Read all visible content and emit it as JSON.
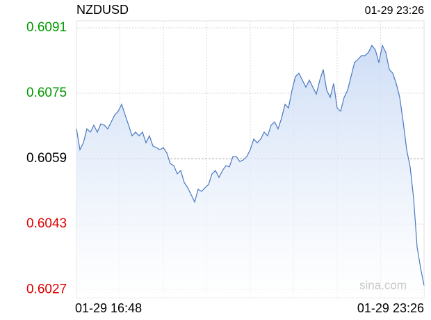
{
  "chart_data": {
    "type": "line",
    "title": "NZDUSD",
    "timestamp": "01-29 23:26",
    "watermark": "sina.com",
    "xlabels": [
      "01-29 16:48",
      "01-29 23:26"
    ],
    "ylim": [
      0.6025,
      0.60927
    ],
    "yticks": [
      0.6091,
      0.6075,
      0.6059,
      0.6043,
      0.6027
    ],
    "reference": 0.6059,
    "up_color": "#009900",
    "down_color": "#e00000",
    "flat_color": "#000000",
    "color": "#4a78c2",
    "grid": true,
    "values": [
      0.60663,
      0.60612,
      0.60629,
      0.60663,
      0.60655,
      0.60672,
      0.60655,
      0.60675,
      0.60672,
      0.60663,
      0.6068,
      0.60697,
      0.60706,
      0.60723,
      0.60697,
      0.60672,
      0.60646,
      0.60655,
      0.60646,
      0.60655,
      0.60629,
      0.60646,
      0.60621,
      0.60617,
      0.60612,
      0.60617,
      0.60604,
      0.60578,
      0.60573,
      0.60553,
      0.60561,
      0.60532,
      0.60519,
      0.60502,
      0.60484,
      0.60515,
      0.6051,
      0.60519,
      0.60527,
      0.60553,
      0.60561,
      0.60544,
      0.60561,
      0.60573,
      0.6057,
      0.60595,
      0.60595,
      0.60583,
      0.60587,
      0.60595,
      0.60612,
      0.60638,
      0.60629,
      0.60638,
      0.60655,
      0.60646,
      0.60672,
      0.6068,
      0.60663,
      0.60689,
      0.60723,
      0.60714,
      0.60757,
      0.60791,
      0.60799,
      0.60782,
      0.60765,
      0.60782,
      0.60765,
      0.60748,
      0.60782,
      0.60808,
      0.60757,
      0.6074,
      0.60774,
      0.60714,
      0.60706,
      0.6074,
      0.60757,
      0.60791,
      0.60825,
      0.60833,
      0.60842,
      0.60842,
      0.6085,
      0.60867,
      0.60856,
      0.60825,
      0.60867,
      0.6085,
      0.60808,
      0.60799,
      0.60774,
      0.6074,
      0.6068,
      0.60612,
      0.6057,
      0.60493,
      0.60374,
      0.60323,
      0.6028
    ]
  }
}
